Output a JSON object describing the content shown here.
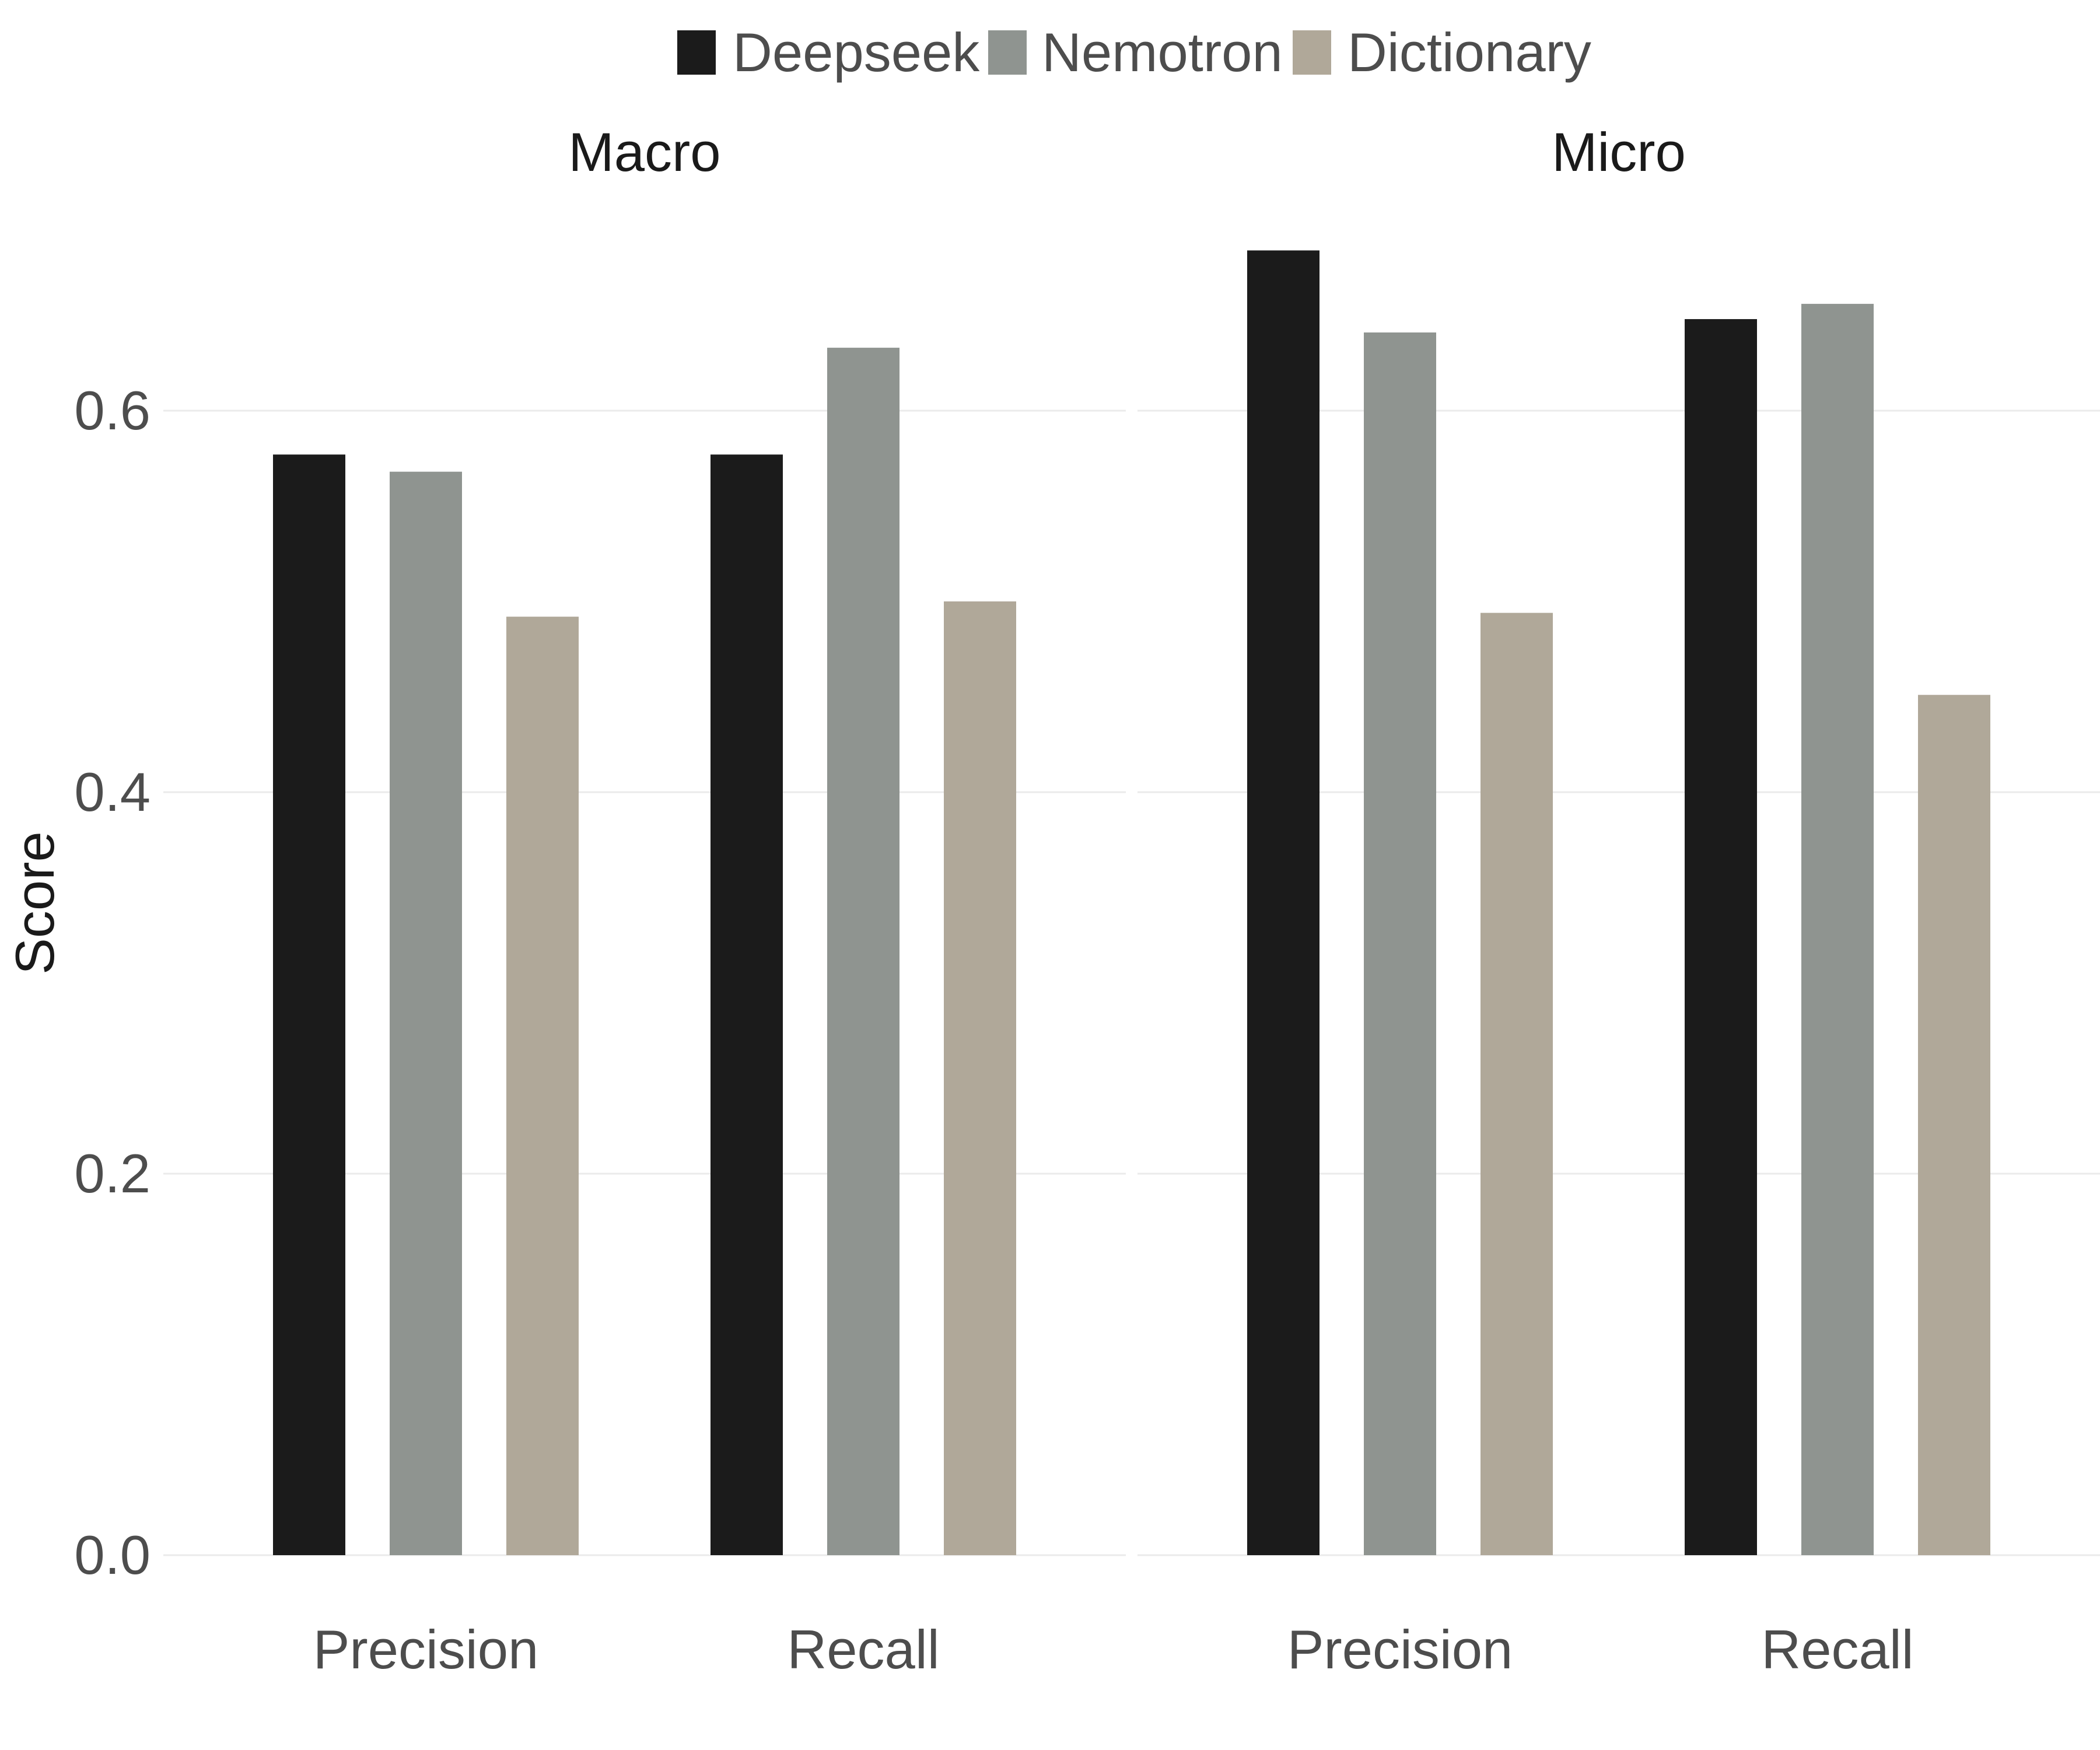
{
  "chart_data": {
    "type": "bar",
    "ylabel": "Score",
    "xlabel": "",
    "ylim": [
      0,
      0.7
    ],
    "y_ticks": [
      "0.0",
      "0.2",
      "0.4",
      "0.6"
    ],
    "y_tick_values": [
      0,
      0.2,
      0.4,
      0.6
    ],
    "grid": true,
    "legend_position": "top",
    "categories": [
      "Precision",
      "Recall"
    ],
    "series_names": [
      "Deepseek",
      "Nemotron",
      "Dictionary"
    ],
    "colors": [
      "#1b1b1b",
      "#8f9490",
      "#b0a899"
    ],
    "facets": [
      {
        "title": "Macro",
        "series": [
          {
            "name": "Deepseek",
            "values": [
              0.577,
              0.577
            ]
          },
          {
            "name": "Nemotron",
            "values": [
              0.568,
              0.633
            ]
          },
          {
            "name": "Dictionary",
            "values": [
              0.492,
              0.5
            ]
          }
        ]
      },
      {
        "title": "Micro",
        "series": [
          {
            "name": "Deepseek",
            "values": [
              0.684,
              0.648
            ]
          },
          {
            "name": "Nemotron",
            "values": [
              0.641,
              0.656
            ]
          },
          {
            "name": "Dictionary",
            "values": [
              0.494,
              0.451
            ]
          }
        ]
      }
    ]
  }
}
